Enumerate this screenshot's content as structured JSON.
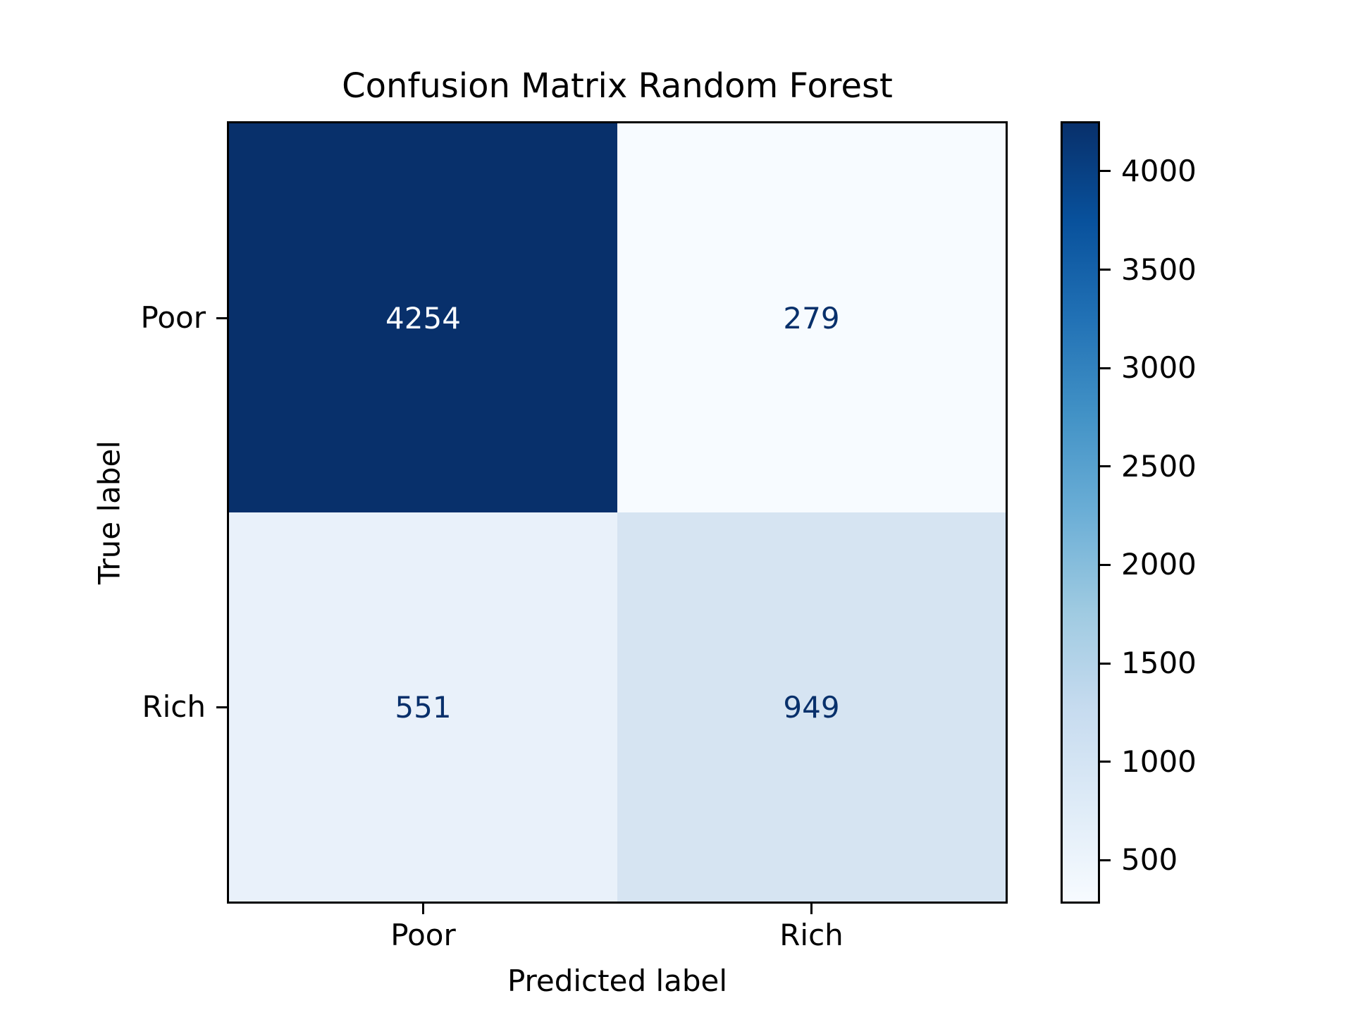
{
  "chart_data": {
    "type": "heatmap",
    "title": "Confusion Matrix Random Forest",
    "xlabel": "Predicted label",
    "ylabel": "True label",
    "x_categories": [
      "Poor",
      "Rich"
    ],
    "y_categories": [
      "Poor",
      "Rich"
    ],
    "matrix": [
      [
        4254,
        279
      ],
      [
        551,
        949
      ]
    ],
    "vmin": 279,
    "vmax": 4254,
    "colormap": "Blues",
    "colorbar_ticks": [
      500,
      1000,
      1500,
      2000,
      2500,
      3000,
      3500,
      4000
    ],
    "cell_colors": [
      [
        "#08306b",
        "#f7fbff"
      ],
      [
        "#e9f1fa",
        "#d6e4f2"
      ]
    ],
    "cell_text_colors": [
      [
        "#f7fbff",
        "#08306b"
      ],
      [
        "#08306b",
        "#08306b"
      ]
    ],
    "colorbar_gradient_bottom_to_top": [
      "#f7fbff",
      "#deebf7",
      "#c6dbef",
      "#9ecae1",
      "#6baed6",
      "#4292c6",
      "#2171b5",
      "#08519c",
      "#08306b"
    ],
    "axis_text_color": "#000000",
    "grid": false,
    "legend_position": "colorbar-right"
  }
}
